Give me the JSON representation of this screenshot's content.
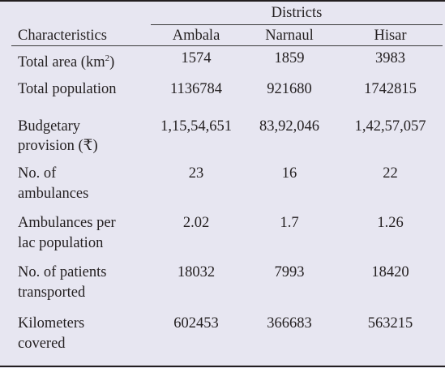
{
  "table": {
    "group_header": "Districts",
    "col_headers": {
      "characteristics": "Characteristics",
      "ambala": "Ambala",
      "narnaul": "Narnaul",
      "hisar": "Hisar"
    },
    "rows": [
      {
        "label_line1": "Total area (km",
        "label_sup": "2",
        "label_tail": ")",
        "label_line2": "",
        "ambala": "1574",
        "narnaul": "1859",
        "hisar": "3983"
      },
      {
        "label_line1": "Total population",
        "label_line2": "",
        "ambala": "1136784",
        "narnaul": "921680",
        "hisar": "1742815"
      },
      {
        "label_line1": "Budgetary",
        "label_line2": "provision (₹)",
        "ambala": "1,15,54,651",
        "narnaul": "83,92,046",
        "hisar": "1,42,57,057"
      },
      {
        "label_line1": "No. of",
        "label_line2": "ambulances",
        "ambala": "23",
        "narnaul": "16",
        "hisar": "22"
      },
      {
        "label_line1": "Ambulances per",
        "label_line2": "lac population",
        "ambala": "2.02",
        "narnaul": "1.7",
        "hisar": "1.26"
      },
      {
        "label_line1": "No. of patients",
        "label_line2": "transported",
        "ambala": "18032",
        "narnaul": "7993",
        "hisar": "18420"
      },
      {
        "label_line1": "Kilometers",
        "label_line2": "covered",
        "ambala": "602453",
        "narnaul": "366683",
        "hisar": "563215"
      }
    ]
  }
}
